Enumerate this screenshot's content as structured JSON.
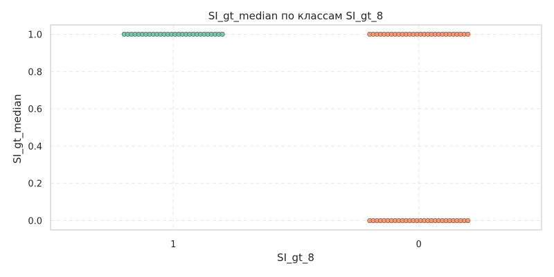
{
  "chart_data": {
    "type": "scatter",
    "title": "SI_gt_median по классам SI_gt_8",
    "xlabel": "SI_gt_8",
    "ylabel": "SI_gt_median",
    "categories": [
      "1",
      "0"
    ],
    "ylim": [
      -0.05,
      1.05
    ],
    "yticks": [
      "0.0",
      "0.2",
      "0.4",
      "0.6",
      "0.8",
      "1.0"
    ],
    "grid": true,
    "series": [
      {
        "category": "1",
        "color": "#66c2a5",
        "edgecolor": "#555555",
        "y_values": [
          1.0
        ]
      },
      {
        "category": "0",
        "color": "#fc8d62",
        "edgecolor": "#555555",
        "y_values": [
          0.0,
          1.0
        ]
      }
    ]
  }
}
